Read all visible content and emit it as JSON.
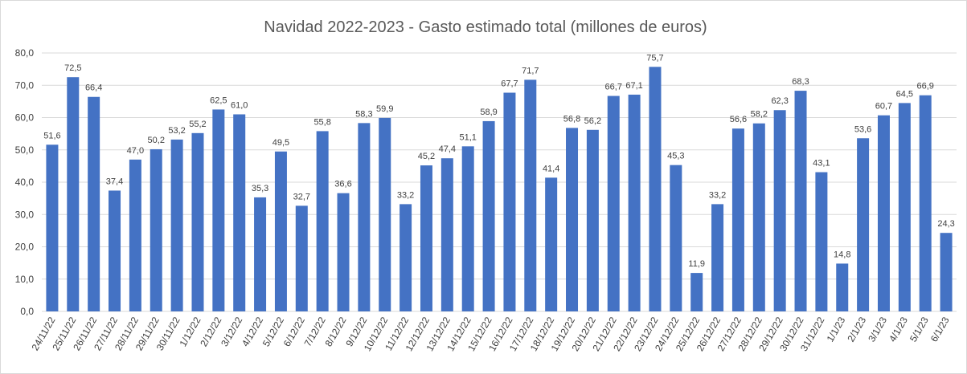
{
  "chart_data": {
    "type": "bar",
    "title": "Navidad 2022-2023 - Gasto estimado total (millones de euros)",
    "categories": [
      "24/11/22",
      "25/11/22",
      "26/11/22",
      "27/11/22",
      "28/11/22",
      "29/11/22",
      "30/11/22",
      "1/12/22",
      "2/12/22",
      "3/12/22",
      "4/12/22",
      "5/12/22",
      "6/12/22",
      "7/12/22",
      "8/12/22",
      "9/12/22",
      "10/12/22",
      "11/12/22",
      "12/12/22",
      "13/12/22",
      "14/12/22",
      "15/12/22",
      "16/12/22",
      "17/12/22",
      "18/12/22",
      "19/12/22",
      "20/12/22",
      "21/12/22",
      "22/12/22",
      "23/12/22",
      "24/12/22",
      "25/12/22",
      "26/12/22",
      "27/12/22",
      "28/12/22",
      "29/12/22",
      "30/12/22",
      "31/12/22",
      "1/1/23",
      "2/1/23",
      "3/1/23",
      "4/1/23",
      "5/1/23",
      "6/1/23"
    ],
    "values": [
      51.6,
      72.5,
      66.4,
      37.4,
      47.0,
      50.2,
      53.2,
      55.2,
      62.5,
      61.0,
      35.3,
      49.5,
      32.7,
      55.8,
      36.6,
      58.3,
      59.9,
      33.2,
      45.2,
      47.4,
      51.1,
      58.9,
      67.7,
      71.7,
      41.4,
      56.8,
      56.2,
      66.7,
      67.1,
      75.7,
      45.3,
      11.9,
      33.2,
      56.6,
      58.2,
      62.3,
      68.3,
      43.1,
      14.8,
      53.6,
      60.7,
      64.5,
      66.9,
      24.3
    ],
    "value_labels": [
      "51,6",
      "72,5",
      "66,4",
      "37,4",
      "47,0",
      "50,2",
      "53,2",
      "55,2",
      "62,5",
      "61,0",
      "35,3",
      "49,5",
      "32,7",
      "55,8",
      "36,6",
      "58,3",
      "59,9",
      "33,2",
      "45,2",
      "47,4",
      "51,1",
      "58,9",
      "67,7",
      "71,7",
      "41,4",
      "56,8",
      "56,2",
      "66,7",
      "67,1",
      "75,7",
      "45,3",
      "11,9",
      "33,2",
      "56,6",
      "58,2",
      "62,3",
      "68,3",
      "43,1",
      "14,8",
      "53,6",
      "60,7",
      "64,5",
      "66,9",
      "24,3"
    ],
    "color": "#4472c4",
    "ylim": [
      0,
      80
    ],
    "yticks": [
      {
        "value": 0,
        "label": "0,0"
      },
      {
        "value": 10,
        "label": "10,0"
      },
      {
        "value": 20,
        "label": "20,0"
      },
      {
        "value": 30,
        "label": "30,0"
      },
      {
        "value": 40,
        "label": "40,0"
      },
      {
        "value": 50,
        "label": "50,0"
      },
      {
        "value": 60,
        "label": "60,0"
      },
      {
        "value": 70,
        "label": "70,0"
      },
      {
        "value": 80,
        "label": "80,0"
      }
    ],
    "grid": true
  }
}
